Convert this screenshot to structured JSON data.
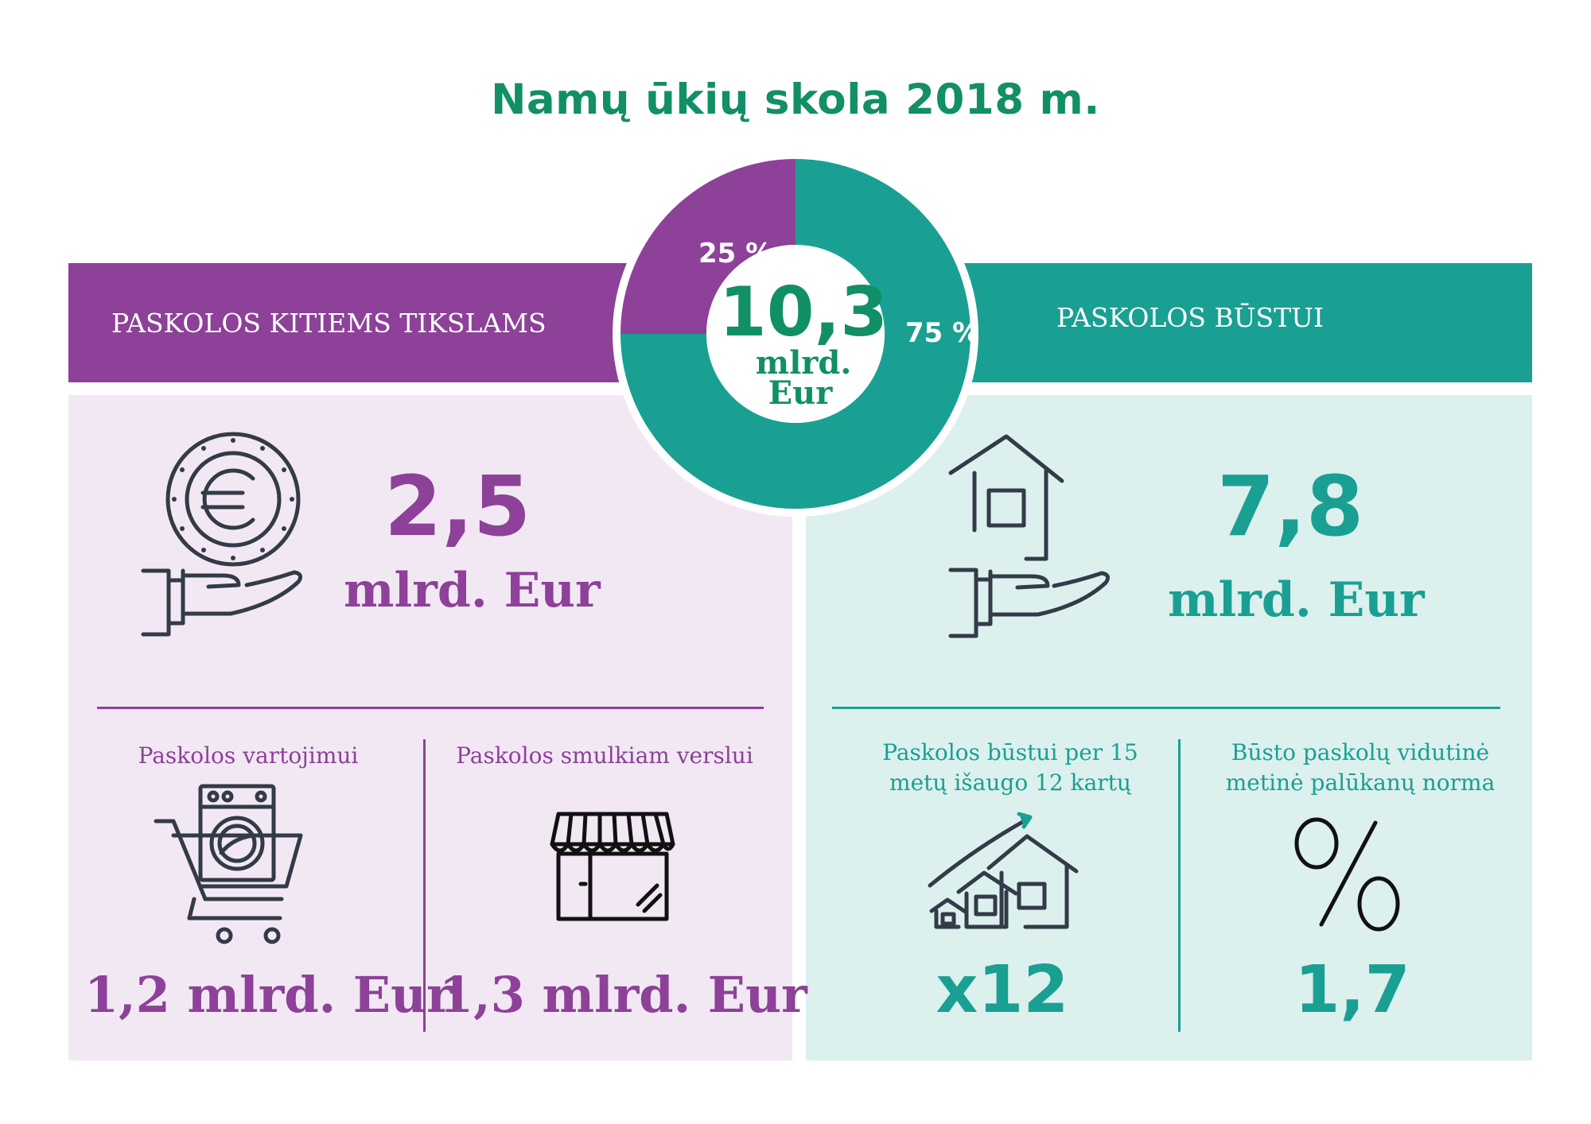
{
  "title": "Namų ūkių skola 2018 m.",
  "colors": {
    "purple": "#8d4198",
    "teal": "#19a093",
    "green": "#118f66",
    "icon": "#333a48"
  },
  "donut": {
    "total": "10,3",
    "unit_line1": "mlrd.",
    "unit_line2": "Eur",
    "label_left": "25 %",
    "label_right": "75 %"
  },
  "left": {
    "bar_label": "PASKOLOS KITIEMS TIKSLAMS",
    "value": "2,5",
    "unit": "mlrd. Eur",
    "icon": "euro-coin-hand-icon",
    "sub": [
      {
        "label": "Paskolos vartojimui",
        "value": "1,2 mlrd. Eur",
        "icon": "shopping-cart-washer-icon"
      },
      {
        "label": "Paskolos smulkiam verslui",
        "value": "1,3 mlrd. Eur",
        "icon": "storefront-icon"
      }
    ]
  },
  "right": {
    "bar_label": "PASKOLOS BŪSTUI",
    "value": "7,8",
    "unit": "mlrd. Eur",
    "icon": "house-hand-icon",
    "sub": [
      {
        "label_line1": "Paskolos būstui per 15",
        "label_line2": "metų išaugo 12 kartų",
        "value": "x12",
        "icon": "growing-houses-icon"
      },
      {
        "label_line1": "Būsto paskolų vidutinė",
        "label_line2": "metinė palūkanų norma",
        "value": "1,7",
        "icon": "percent-icon"
      }
    ]
  },
  "chart_data": {
    "type": "pie",
    "title": "Namų ūkių skola 2018 m.",
    "total": 10.3,
    "total_unit": "mlrd. Eur",
    "slices": [
      {
        "name": "PASKOLOS KITIEMS TIKSLAMS",
        "value": 2.5,
        "percent": 25,
        "color": "#8d4198"
      },
      {
        "name": "PASKOLOS BŪSTUI",
        "value": 7.8,
        "percent": 75,
        "color": "#19a093"
      }
    ]
  }
}
